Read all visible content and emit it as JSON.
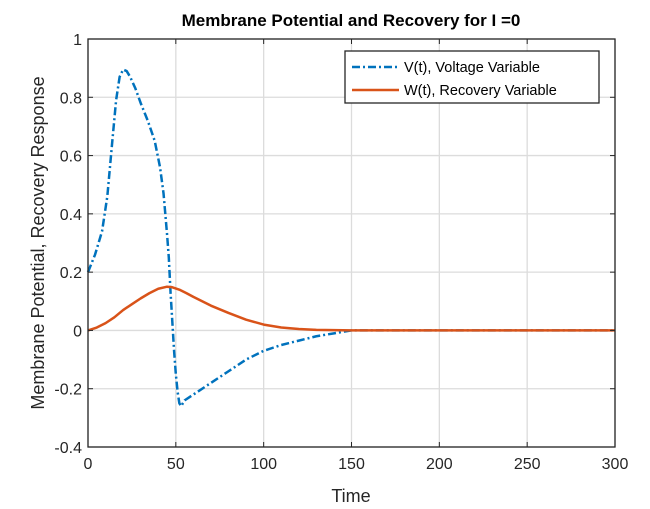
{
  "chart_data": {
    "type": "line",
    "title": "Membrane Potential and Recovery for I =0",
    "xlabel": "Time",
    "ylabel": "Membrane Potential, Recovery Response",
    "xlim": [
      0,
      300
    ],
    "ylim": [
      -0.4,
      1
    ],
    "xticks": [
      0,
      50,
      100,
      150,
      200,
      250,
      300
    ],
    "yticks": [
      -0.4,
      -0.2,
      0,
      0.2,
      0.4,
      0.6,
      0.8,
      1
    ],
    "ytick_labels": [
      "-0.4",
      "-0.2",
      "0",
      "0.2",
      "0.4",
      "0.6",
      "0.8",
      "1"
    ],
    "grid": true,
    "legend_position": "top-right",
    "series": [
      {
        "name": "V(t), Voltage Variable",
        "color": "#0072BD",
        "style": "dash-dot",
        "x": [
          0,
          4,
          8,
          11,
          14,
          16,
          18,
          20,
          22,
          24,
          27,
          30,
          34,
          38,
          41,
          43,
          45,
          46,
          47,
          48,
          49,
          50,
          51,
          52,
          53,
          55,
          60,
          70,
          80,
          90,
          100,
          110,
          120,
          130,
          140,
          150,
          200,
          250,
          300
        ],
        "y": [
          0.2,
          0.26,
          0.34,
          0.46,
          0.66,
          0.79,
          0.87,
          0.895,
          0.89,
          0.87,
          0.83,
          0.78,
          0.72,
          0.65,
          0.56,
          0.47,
          0.33,
          0.25,
          0.13,
          0.03,
          -0.07,
          -0.15,
          -0.21,
          -0.25,
          -0.26,
          -0.24,
          -0.22,
          -0.18,
          -0.14,
          -0.1,
          -0.07,
          -0.05,
          -0.035,
          -0.02,
          -0.01,
          0,
          0,
          0,
          0
        ]
      },
      {
        "name": "W(t), Recovery Variable",
        "color": "#D95319",
        "style": "solid",
        "x": [
          0,
          5,
          10,
          15,
          20,
          25,
          30,
          35,
          40,
          45,
          48,
          52,
          56,
          60,
          70,
          80,
          90,
          100,
          110,
          120,
          130,
          140,
          150,
          200,
          250,
          300
        ],
        "y": [
          0,
          0.01,
          0.025,
          0.045,
          0.07,
          0.09,
          0.11,
          0.128,
          0.143,
          0.15,
          0.148,
          0.14,
          0.128,
          0.115,
          0.085,
          0.06,
          0.037,
          0.02,
          0.01,
          0.005,
          0.002,
          0.001,
          0,
          0,
          0,
          0
        ]
      }
    ]
  }
}
